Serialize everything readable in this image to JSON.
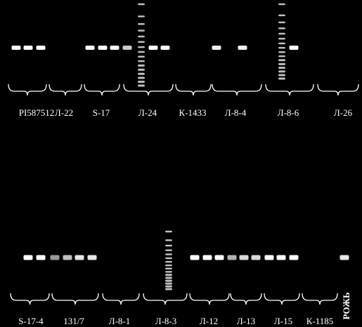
{
  "top_row": {
    "labels": [
      "PI587512",
      "Л-22",
      "S-17",
      "Л-24",
      "К-1433",
      "Л-8-4",
      "Л-8-6",
      "Л-26"
    ]
  },
  "bottom_row": {
    "labels": [
      "S-17-4",
      "131/7",
      "Л-8-1",
      "Л-8-3",
      "Л-12",
      "Л-13",
      "Л-15",
      "К-1185",
      "РОЖЬ"
    ]
  }
}
